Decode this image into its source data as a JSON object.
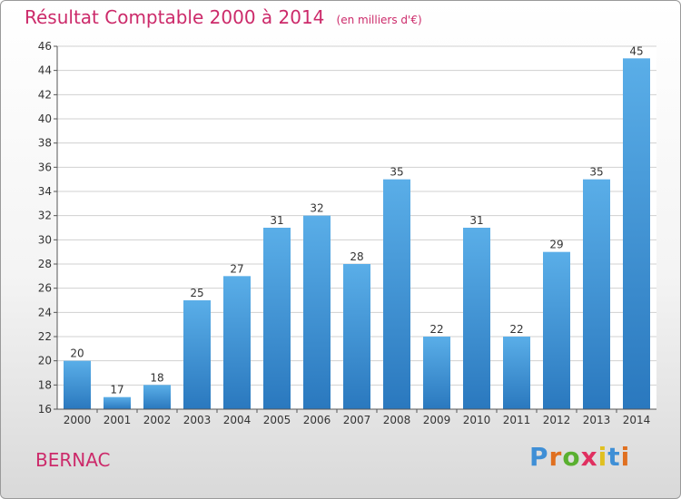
{
  "chart_data": {
    "type": "bar",
    "title": "Résultat Comptable 2000 à 2014",
    "subtitle": "(en milliers d'€)",
    "categories": [
      "2000",
      "2001",
      "2002",
      "2003",
      "2004",
      "2005",
      "2006",
      "2007",
      "2008",
      "2009",
      "2010",
      "2011",
      "2012",
      "2013",
      "2014"
    ],
    "values": [
      20,
      17,
      18,
      25,
      27,
      31,
      32,
      28,
      35,
      22,
      31,
      22,
      29,
      35,
      45
    ],
    "ylim": [
      16,
      46
    ],
    "yticks": [
      16,
      18,
      20,
      22,
      24,
      26,
      28,
      30,
      32,
      34,
      36,
      38,
      40,
      42,
      44,
      46
    ],
    "grid": true,
    "bar_color_top": "#5aaee8",
    "bar_color_bottom": "#2a78be"
  },
  "place_name": "BERNAC",
  "logo": {
    "text": "Proxiti",
    "letters": [
      {
        "ch": "P",
        "color": "#3f8fd6"
      },
      {
        "ch": "r",
        "color": "#e07020"
      },
      {
        "ch": "o",
        "color": "#5ab030"
      },
      {
        "ch": "x",
        "color": "#e03060"
      },
      {
        "ch": "i",
        "color": "#e0c020"
      },
      {
        "ch": "t",
        "color": "#3f8fd6"
      },
      {
        "ch": "i",
        "color": "#e07020"
      }
    ]
  }
}
